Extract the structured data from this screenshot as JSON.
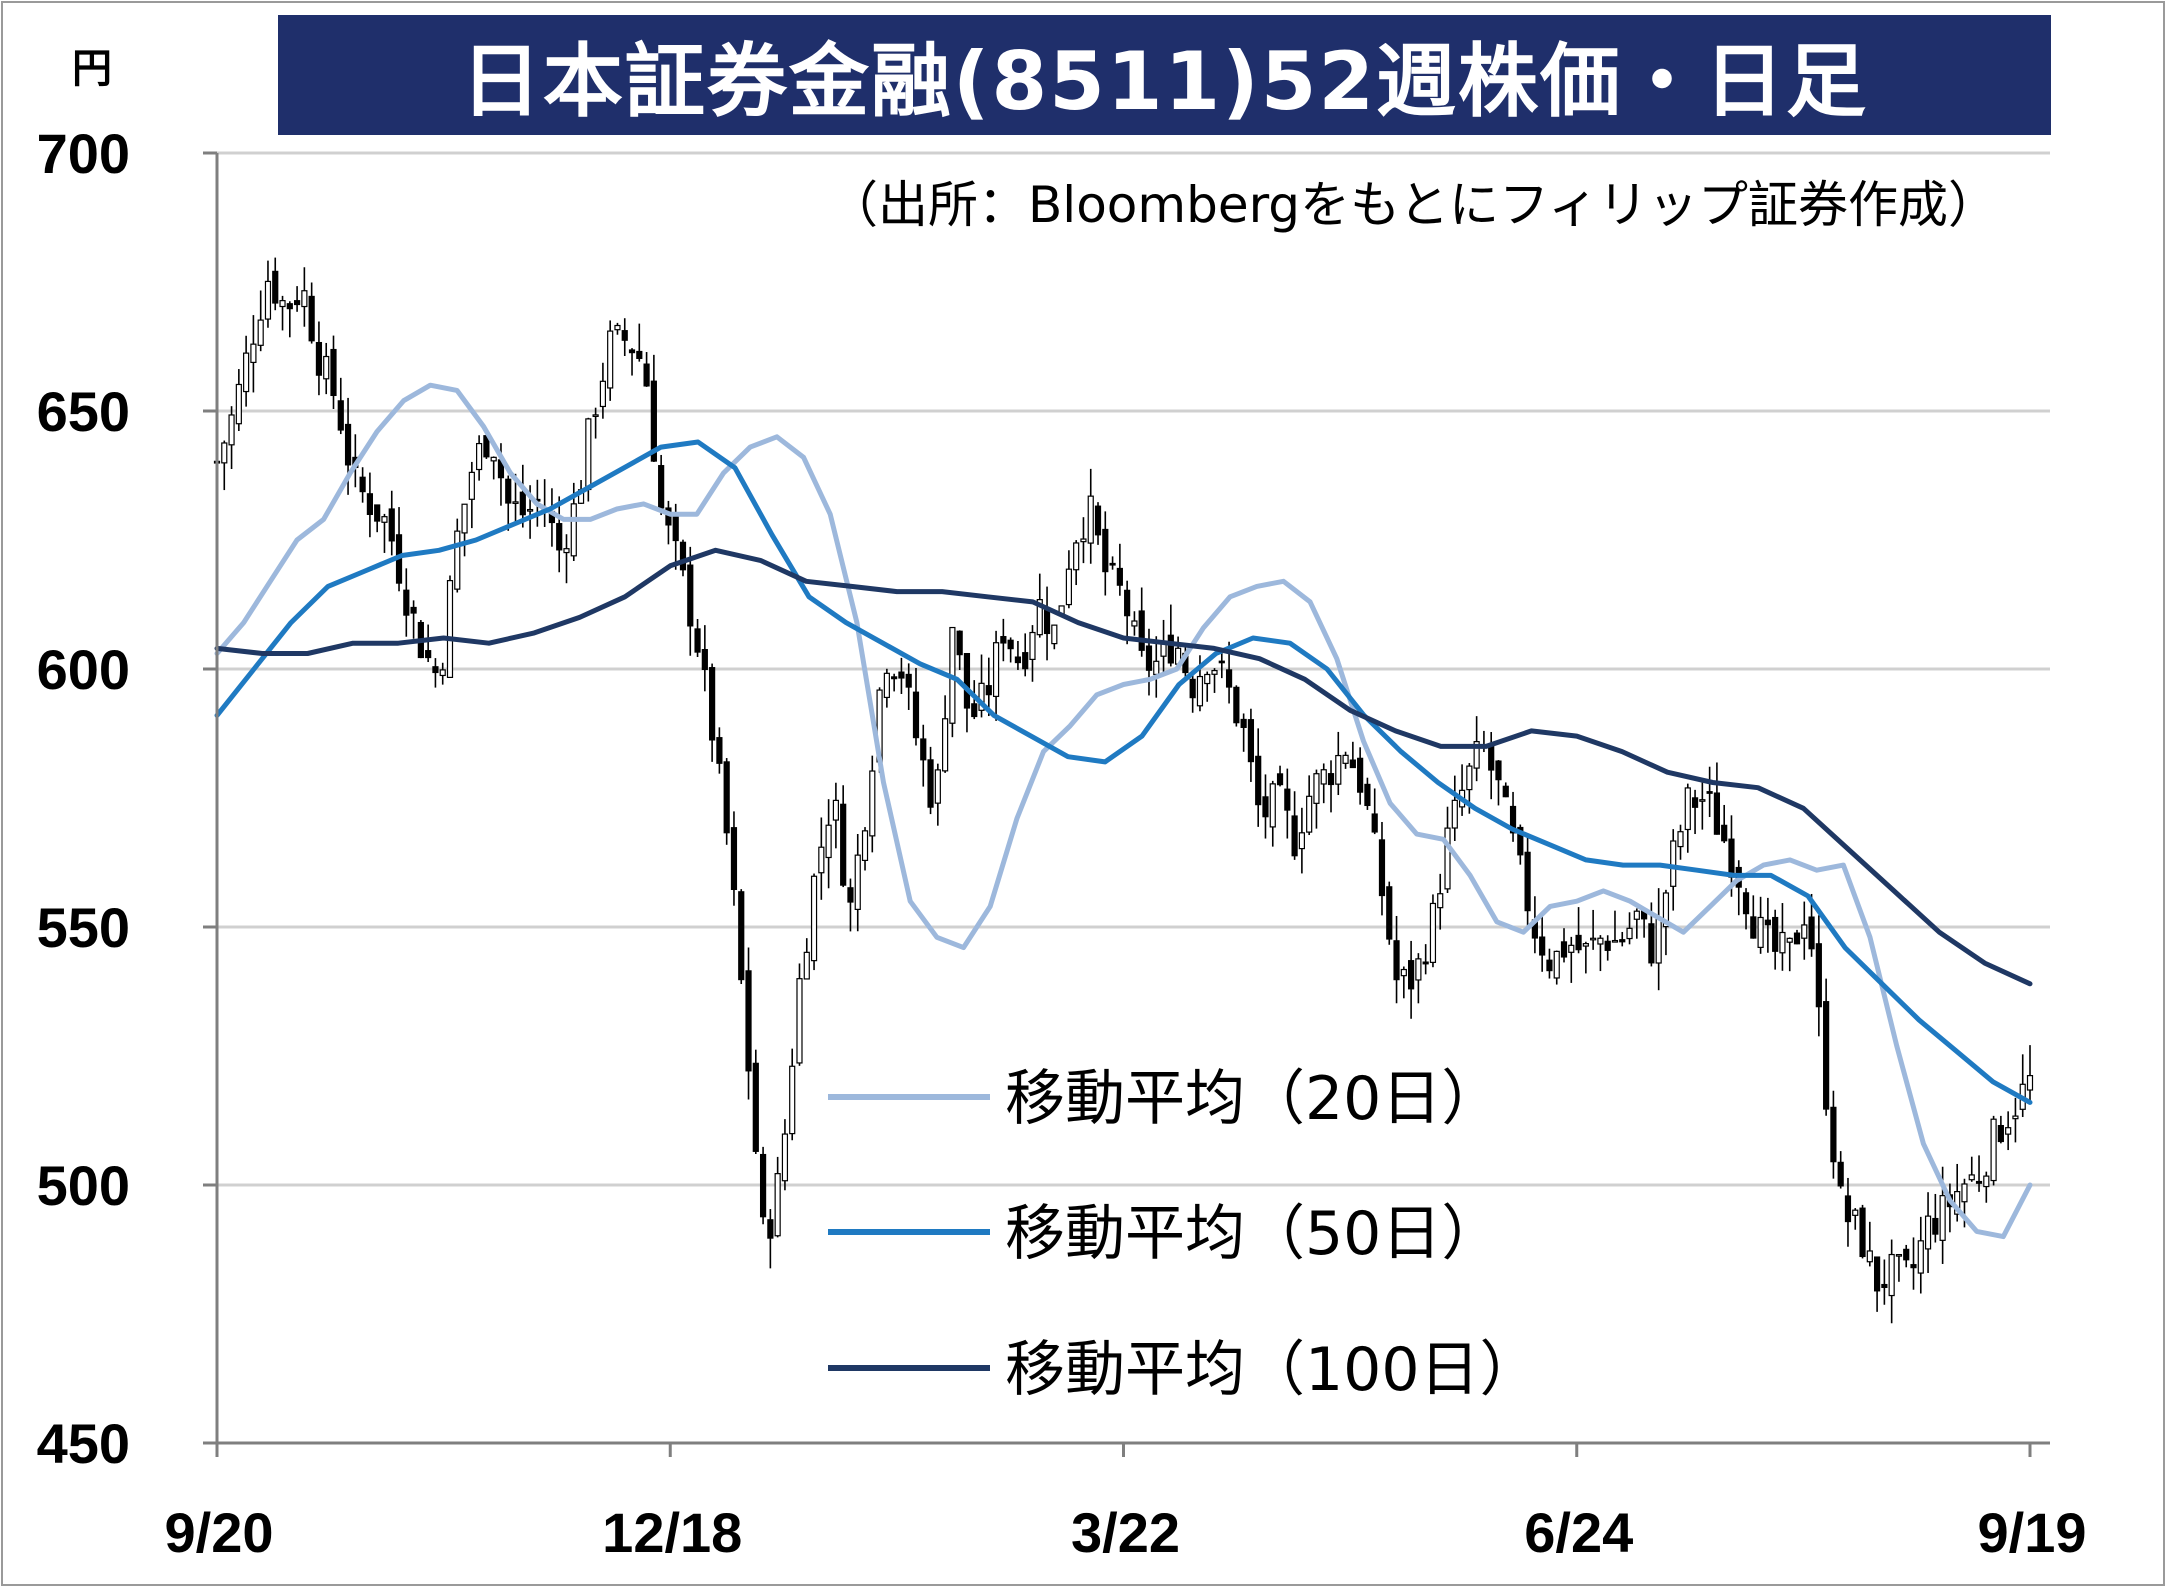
{
  "title": "日本証券金融(8511)52週株価・日足",
  "y_unit": "円",
  "chart_data": {
    "type": "candlestick",
    "title": "日本証券金融(8511)52週株価・日足",
    "source_note": "（出所：Bloombergをもとにフィリップ証券作成）",
    "ylabel": "円",
    "ylim": [
      450,
      700
    ],
    "yticks": [
      700,
      650,
      600,
      550,
      500,
      450
    ],
    "xticks": [
      "9/20",
      "12/18",
      "3/22",
      "6/24",
      "9/19"
    ],
    "grid": true,
    "legend_position": "bottom-center",
    "series": [
      {
        "name": "移動平均（20日）",
        "color": "#9db8dc",
        "values": [
          603,
          609,
          617,
          625,
          629,
          638,
          646,
          652,
          655,
          654,
          647,
          638,
          632,
          629,
          629,
          631,
          632,
          630,
          630,
          638,
          643,
          645,
          641,
          630,
          609,
          578,
          555,
          548,
          546,
          554,
          571,
          584,
          589,
          595,
          597,
          598,
          600,
          608,
          614,
          616,
          617,
          613,
          602,
          586,
          574,
          568,
          567,
          560,
          551,
          549,
          554,
          555,
          557,
          555,
          552,
          549,
          554,
          559,
          562,
          563,
          561,
          562,
          548,
          527,
          508,
          497,
          491,
          490,
          500
        ]
      },
      {
        "name": "移動平均（50日）",
        "color": "#1f7ac2",
        "values": [
          591,
          600,
          609,
          616,
          619,
          622,
          623,
          625,
          628,
          631,
          635,
          639,
          643,
          644,
          639,
          626,
          614,
          609,
          605,
          601,
          598,
          591,
          587,
          583,
          582,
          587,
          597,
          603,
          606,
          605,
          600,
          591,
          584,
          578,
          573,
          569,
          566,
          563,
          562,
          562,
          561,
          560,
          560,
          556,
          546,
          539,
          532,
          526,
          520,
          516
        ]
      },
      {
        "name": "移動平均（100日）",
        "color": "#1f3864",
        "values": [
          604,
          603,
          603,
          605,
          605,
          606,
          605,
          607,
          610,
          614,
          620,
          623,
          621,
          617,
          616,
          615,
          615,
          614,
          613,
          609,
          606,
          605,
          604,
          602,
          598,
          592,
          588,
          585,
          585,
          588,
          587,
          584,
          580,
          578,
          577,
          573,
          565,
          557,
          549,
          543,
          539
        ]
      }
    ],
    "candles_note": "daily OHLC candles, approx. 250 trading days; estimated range per period",
    "candle_path": [
      640,
      650,
      664,
      676,
      670,
      674,
      660,
      652,
      636,
      632,
      628,
      615,
      604,
      598,
      625,
      640,
      646,
      632,
      630,
      633,
      623,
      632,
      650,
      663,
      664,
      659,
      630,
      620,
      607,
      587,
      563,
      526,
      488,
      503,
      538,
      561,
      576,
      553,
      575,
      603,
      600,
      585,
      573,
      609,
      590,
      595,
      608,
      601,
      613,
      607,
      625,
      631,
      618,
      614,
      601,
      601,
      606,
      597,
      603,
      597,
      588,
      571,
      575,
      567,
      577,
      580,
      585,
      577,
      559,
      539,
      540,
      550,
      568,
      578,
      585,
      576,
      563,
      550,
      543,
      547,
      545,
      548,
      547,
      552,
      545,
      562,
      574,
      575,
      568,
      560,
      550,
      545,
      545,
      555,
      520,
      495,
      491,
      481,
      483,
      482,
      492,
      495,
      500,
      502,
      510,
      515,
      520
    ]
  }
}
